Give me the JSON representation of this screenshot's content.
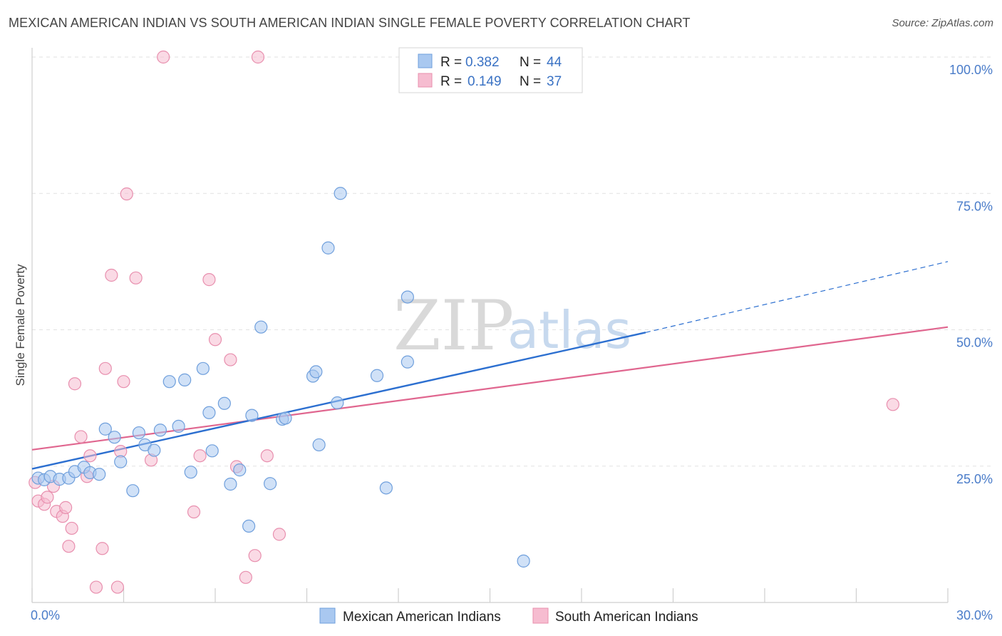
{
  "title": "MEXICAN AMERICAN INDIAN VS SOUTH AMERICAN INDIAN SINGLE FEMALE POVERTY CORRELATION CHART",
  "source": "Source: ZipAtlas.com",
  "watermark": {
    "zip": "ZIP",
    "atlas": "atlas"
  },
  "colors": {
    "blue_fill": "#a9c8f0",
    "blue_stroke": "#6f9fdc",
    "blue_line": "#2c6fd0",
    "pink_fill": "#f6bcd0",
    "pink_stroke": "#e88fae",
    "pink_line": "#e0668f",
    "tick": "#4a7cc9"
  },
  "legend": {
    "r_label": "R =",
    "n_label": "N =",
    "series": [
      {
        "r": "0.382",
        "n": "44"
      },
      {
        "r": "0.149",
        "n": "37"
      }
    ]
  },
  "chart_data": {
    "type": "scatter",
    "title": "MEXICAN AMERICAN INDIAN VS SOUTH AMERICAN INDIAN SINGLE FEMALE POVERTY CORRELATION CHART",
    "xlabel": "",
    "ylabel": "Single Female Poverty",
    "xlim": [
      0,
      30
    ],
    "ylim": [
      0,
      100
    ],
    "x_tick_labels": [
      "0.0%",
      "30.0%"
    ],
    "y_tick_labels": [
      {
        "value": 100,
        "label": "100.0%"
      },
      {
        "value": 75,
        "label": "75.0%"
      },
      {
        "value": 50,
        "label": "50.0%"
      },
      {
        "value": 25,
        "label": "25.0%"
      }
    ],
    "grid": true,
    "series": [
      {
        "name": "Mexican American Indians",
        "color": "blue",
        "trend": {
          "x0": 0,
          "y0": 24.5,
          "x1": 20.1,
          "y1": 49.5,
          "dash_to_x": 30,
          "dash_to_y": 62.5
        },
        "points": [
          [
            0.2,
            22.8
          ],
          [
            0.4,
            22.5
          ],
          [
            0.6,
            23.1
          ],
          [
            0.9,
            22.6
          ],
          [
            1.2,
            22.8
          ],
          [
            1.4,
            24.0
          ],
          [
            1.7,
            24.8
          ],
          [
            1.9,
            23.8
          ],
          [
            2.2,
            23.5
          ],
          [
            2.4,
            31.8
          ],
          [
            2.7,
            30.3
          ],
          [
            2.9,
            25.8
          ],
          [
            3.3,
            20.5
          ],
          [
            3.5,
            31.1
          ],
          [
            3.7,
            28.9
          ],
          [
            4.0,
            27.9
          ],
          [
            4.2,
            31.6
          ],
          [
            4.5,
            40.5
          ],
          [
            4.8,
            32.3
          ],
          [
            5.0,
            40.8
          ],
          [
            5.2,
            23.9
          ],
          [
            5.6,
            42.9
          ],
          [
            5.8,
            34.8
          ],
          [
            5.9,
            27.8
          ],
          [
            6.3,
            36.5
          ],
          [
            6.5,
            21.7
          ],
          [
            6.8,
            24.3
          ],
          [
            7.1,
            14.0
          ],
          [
            7.2,
            34.3
          ],
          [
            7.5,
            50.5
          ],
          [
            7.8,
            21.8
          ],
          [
            8.2,
            33.6
          ],
          [
            8.3,
            33.8
          ],
          [
            9.2,
            41.5
          ],
          [
            9.3,
            42.3
          ],
          [
            9.4,
            28.9
          ],
          [
            9.7,
            65.0
          ],
          [
            10.0,
            36.6
          ],
          [
            10.1,
            75.0
          ],
          [
            11.3,
            41.6
          ],
          [
            11.6,
            21.0
          ],
          [
            12.3,
            44.1
          ],
          [
            12.3,
            56.0
          ],
          [
            16.1,
            7.6
          ]
        ]
      },
      {
        "name": "South American Indians",
        "color": "pink",
        "trend": {
          "x0": 0,
          "y0": 28.0,
          "x1": 30,
          "y1": 50.5
        },
        "points": [
          [
            0.1,
            22.0
          ],
          [
            0.2,
            18.6
          ],
          [
            0.4,
            18.0
          ],
          [
            0.5,
            19.3
          ],
          [
            0.7,
            21.3
          ],
          [
            0.8,
            16.7
          ],
          [
            1.0,
            15.8
          ],
          [
            1.1,
            17.4
          ],
          [
            1.2,
            10.3
          ],
          [
            1.3,
            13.6
          ],
          [
            1.4,
            40.1
          ],
          [
            1.6,
            30.4
          ],
          [
            1.8,
            23.1
          ],
          [
            1.9,
            26.9
          ],
          [
            2.1,
            2.8
          ],
          [
            2.3,
            9.9
          ],
          [
            2.4,
            42.9
          ],
          [
            2.6,
            60.0
          ],
          [
            2.8,
            2.8
          ],
          [
            2.9,
            27.7
          ],
          [
            3.0,
            40.5
          ],
          [
            3.1,
            74.9
          ],
          [
            3.4,
            59.5
          ],
          [
            3.9,
            26.1
          ],
          [
            4.3,
            100.0
          ],
          [
            5.3,
            16.6
          ],
          [
            5.5,
            26.9
          ],
          [
            5.8,
            59.2
          ],
          [
            6.0,
            48.2
          ],
          [
            6.5,
            44.5
          ],
          [
            6.7,
            24.9
          ],
          [
            7.0,
            4.6
          ],
          [
            7.3,
            8.6
          ],
          [
            7.4,
            100.0
          ],
          [
            7.7,
            26.9
          ],
          [
            8.1,
            12.5
          ],
          [
            28.2,
            36.3
          ]
        ]
      }
    ]
  }
}
